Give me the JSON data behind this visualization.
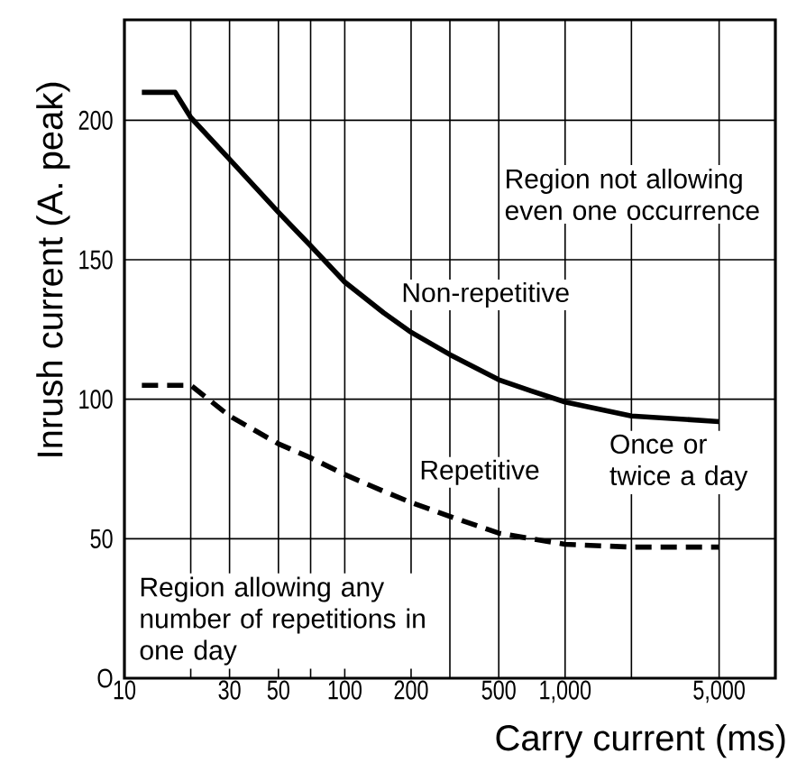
{
  "chart_data": {
    "type": "line",
    "xlabel": "Carry current (ms)",
    "ylabel": "Inrush current (A. peak)",
    "annotations": [
      "Region not allowing even one occurrence",
      "Once or twice a day",
      "Region allowing any number of repetitions in one day"
    ],
    "log": "x",
    "xlim": [
      10,
      9000
    ],
    "xticks": [
      10,
      {
        "value": 20,
        "label": null
      },
      30,
      50,
      {
        "value": 70,
        "label": null
      },
      100,
      200,
      {
        "value": 300,
        "label": null
      },
      500,
      {
        "value": 1000,
        "label": "1,000"
      },
      {
        "value": 2000,
        "label": null
      },
      {
        "value": 5000,
        "label": "5,000"
      }
    ],
    "ylim": [
      0,
      236
    ],
    "yticks": [
      {
        "value": 0,
        "label": "O"
      },
      50,
      100,
      150,
      200
    ],
    "grid": true,
    "series": [
      {
        "name": "Non-repetitive",
        "color": "#000000",
        "line_style": "solid",
        "x": [
          12,
          17,
          20,
          30,
          50,
          70,
          100,
          150,
          200,
          300,
          500,
          700,
          1000,
          2000,
          5000
        ],
        "values": [
          210,
          210,
          201,
          186,
          167,
          155,
          142,
          131,
          124,
          116,
          107,
          103,
          99,
          94,
          92
        ]
      },
      {
        "name": "Repetitive",
        "color": "#000000",
        "line_style": "dashed",
        "x": [
          12,
          20,
          30,
          50,
          70,
          100,
          150,
          200,
          300,
          500,
          700,
          1000,
          2000,
          5000
        ],
        "values": [
          105,
          105,
          94,
          84,
          79,
          73,
          67,
          63,
          58,
          52,
          50,
          48,
          47,
          47
        ]
      }
    ]
  }
}
